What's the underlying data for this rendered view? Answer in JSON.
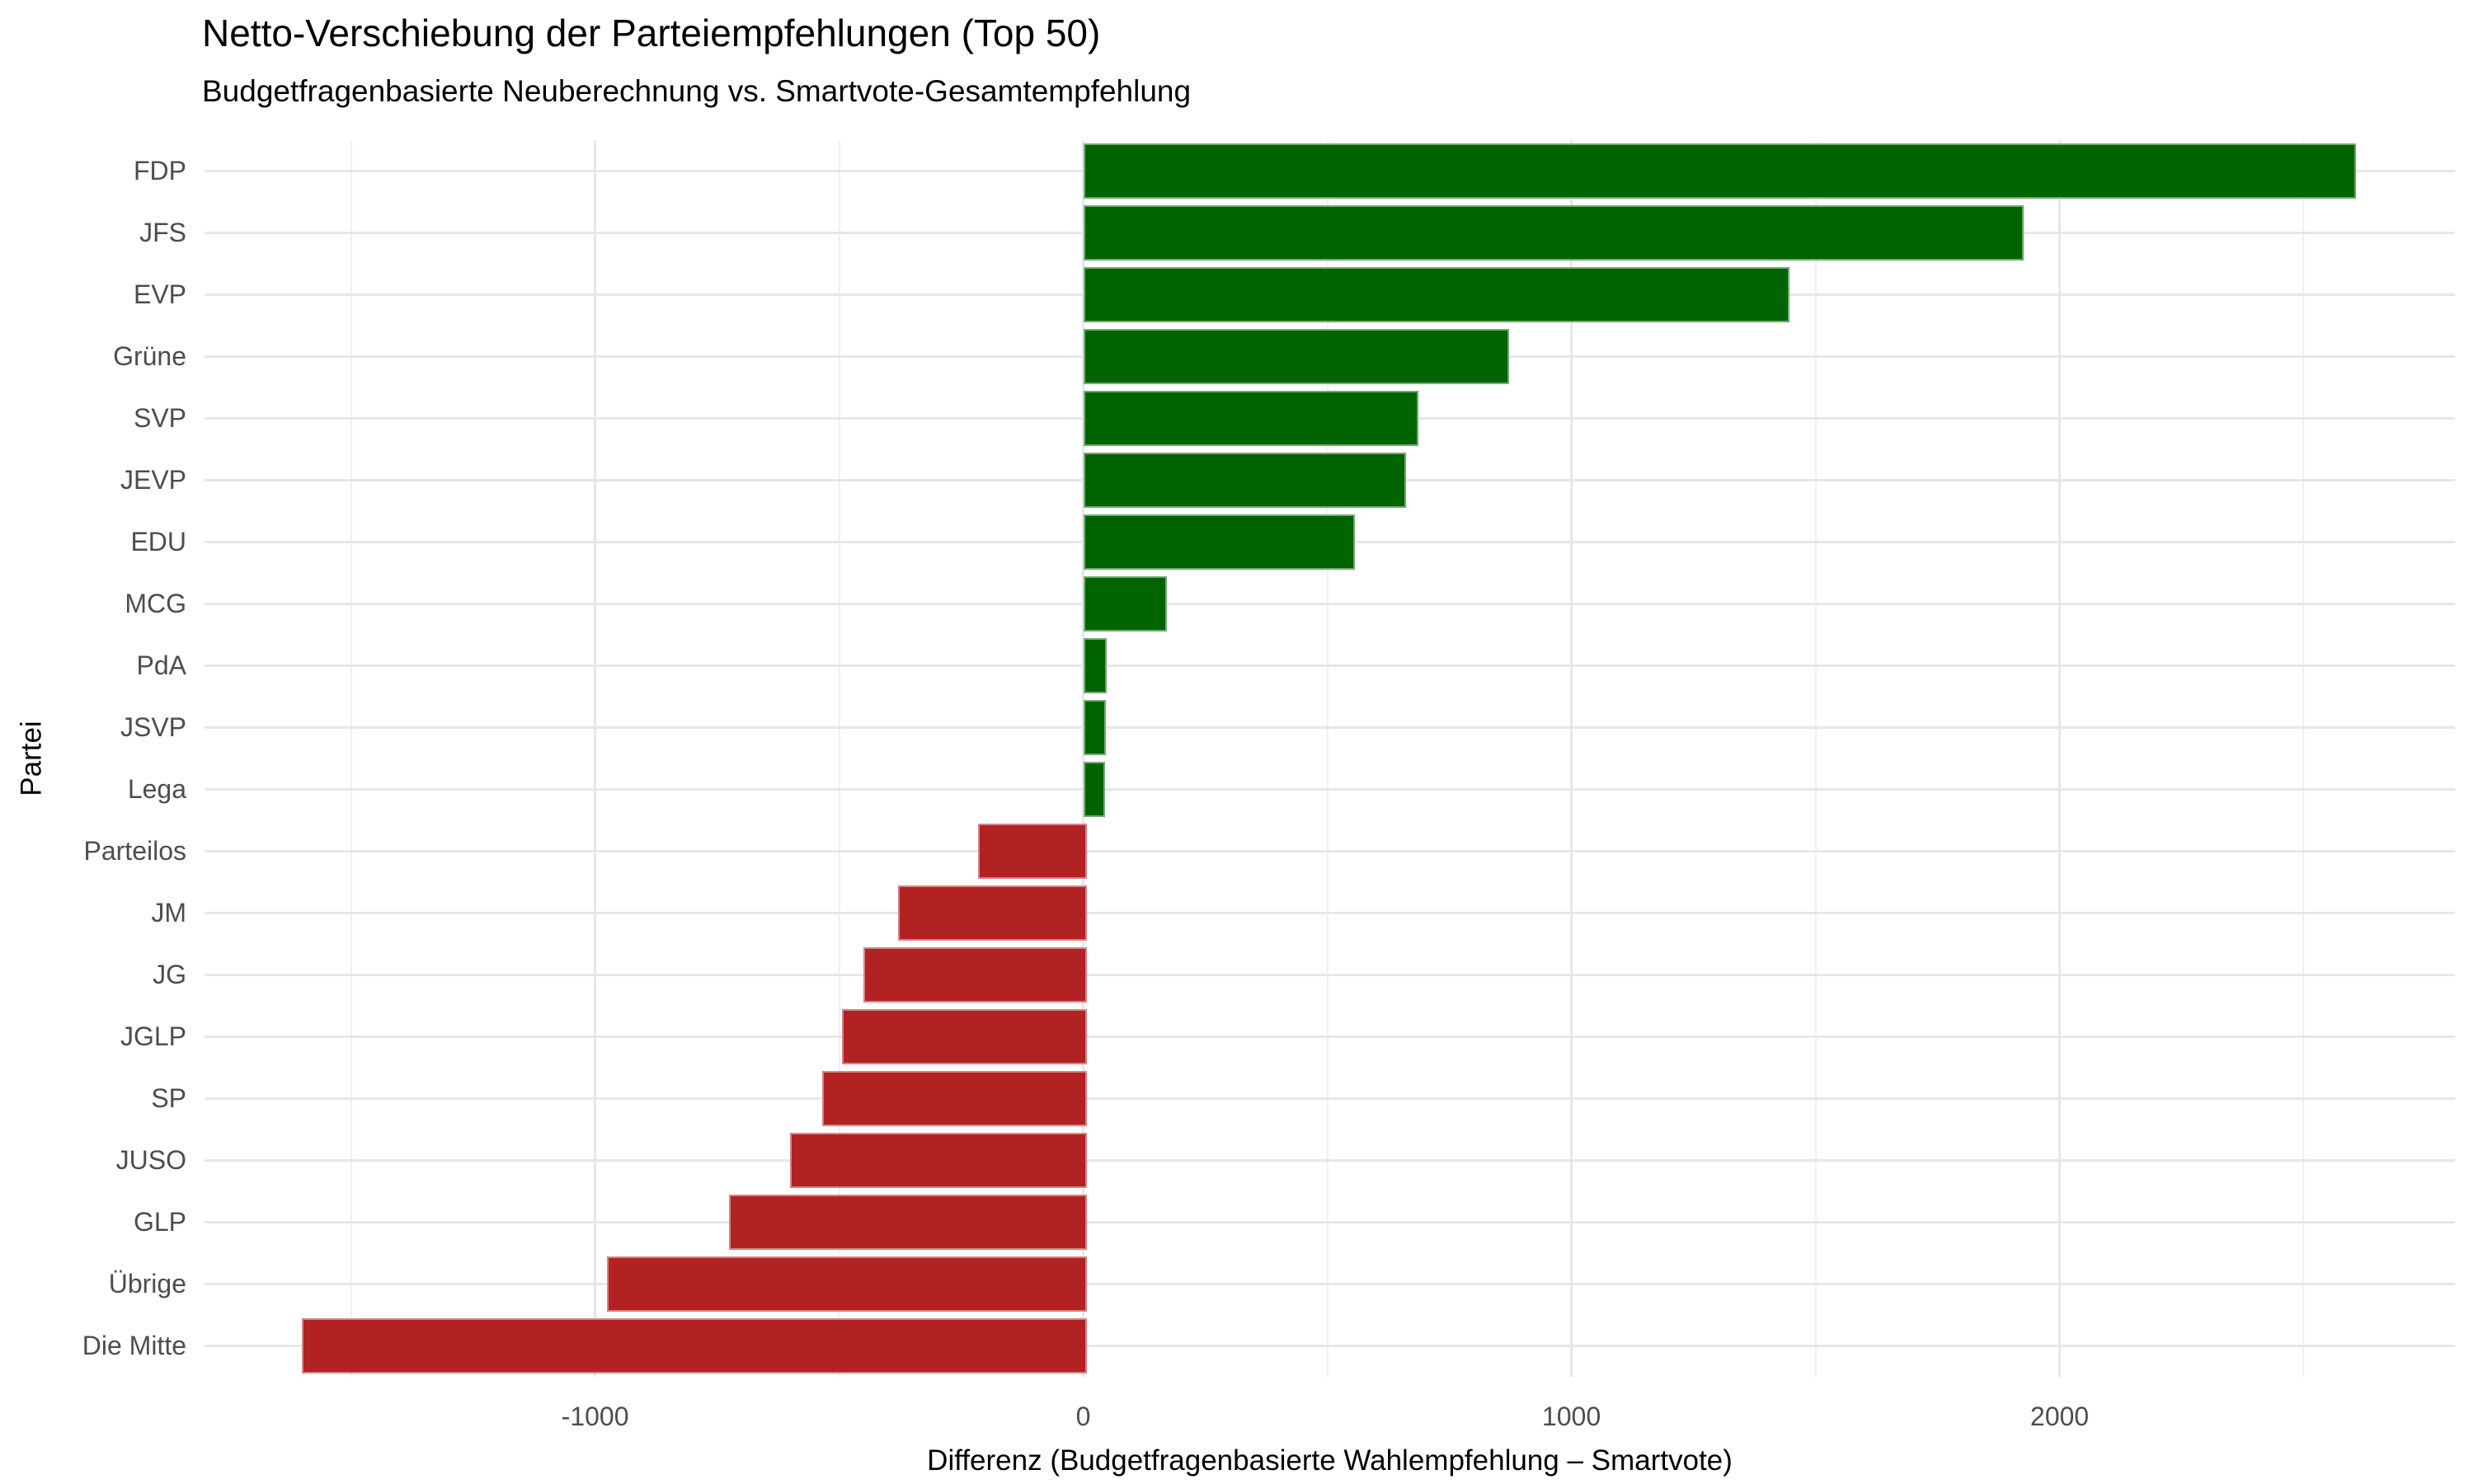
{
  "chart_data": {
    "type": "bar",
    "orientation": "horizontal",
    "title": "Netto-Verschiebung der Parteiempfehlungen (Top 50)",
    "subtitle": "Budgetfragenbasierte Neuberechnung vs. Smartvote-Gesamtempfehlung",
    "xlabel": "Differenz (Budgetfragenbasierte Wahlempfehlung – Smartvote)",
    "ylabel": "Partei",
    "categories": [
      "FDP",
      "JFS",
      "EVP",
      "Grüne",
      "SVP",
      "JEVP",
      "EDU",
      "MCG",
      "PdA",
      "JSVP",
      "Lega",
      "Parteilos",
      "JM",
      "JG",
      "JGLP",
      "SP",
      "JUSO",
      "GLP",
      "Übrige",
      "Die Mitte"
    ],
    "values": [
      2600,
      1920,
      1440,
      865,
      680,
      655,
      550,
      165,
      42,
      40,
      38,
      -215,
      -380,
      -450,
      -495,
      -535,
      -600,
      -725,
      -975,
      -1600
    ],
    "xlim": [
      -1800,
      2810
    ],
    "x_ticks_major": [
      {
        "value": -1000,
        "label": "-1000"
      },
      {
        "value": 0,
        "label": "0"
      },
      {
        "value": 1000,
        "label": "1000"
      },
      {
        "value": 2000,
        "label": "2000"
      }
    ],
    "x_ticks_minor": [
      -1500,
      -500,
      500,
      1500,
      2500
    ],
    "grid": true,
    "legend": "none",
    "colors": {
      "positive": "#006400",
      "negative": "#B22222",
      "grid_major": "#E7E7E7",
      "grid_minor": "#F0F0F0",
      "tick_label": "#4D4D4D",
      "title": "#000000",
      "background": "#FFFFFF"
    }
  }
}
